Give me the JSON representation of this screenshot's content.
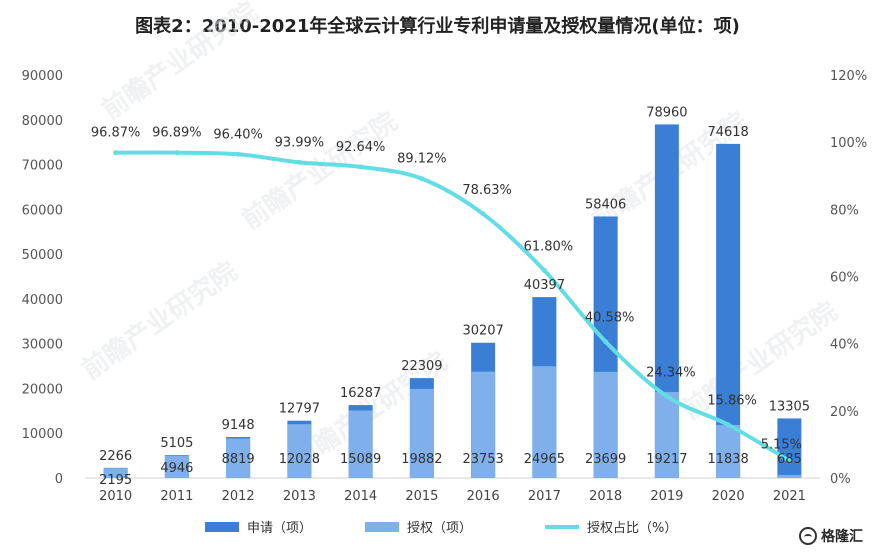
{
  "chart_data": {
    "type": "bar+line",
    "title": "图表2：2010-2021年全球云计算行业专利申请量及授权量情况(单位：项)",
    "categories": [
      "2010",
      "2011",
      "2012",
      "2013",
      "2014",
      "2015",
      "2016",
      "2017",
      "2018",
      "2019",
      "2020",
      "2021"
    ],
    "series": [
      {
        "name": "申请（项）",
        "axis": "left",
        "type": "bar",
        "color": "#3a7fd5",
        "values": [
          2266,
          5105,
          9148,
          12797,
          16287,
          22309,
          30207,
          40397,
          58406,
          78960,
          74618,
          13305
        ]
      },
      {
        "name": "授权（项）",
        "axis": "left",
        "type": "bar",
        "color": "#7fb0ec",
        "values": [
          2195,
          4946,
          8819,
          12028,
          15089,
          19882,
          23753,
          24965,
          23699,
          19217,
          11838,
          685
        ]
      },
      {
        "name": "授权占比（%）",
        "axis": "right",
        "type": "line",
        "color": "#62dde4",
        "values": [
          96.87,
          96.89,
          96.4,
          93.99,
          92.64,
          89.12,
          78.63,
          61.8,
          40.58,
          24.34,
          15.86,
          5.15
        ],
        "labels": [
          "96.87%",
          "96.89%",
          "96.40%",
          "93.99%",
          "92.64%",
          "89.12%",
          "78.63%",
          "61.80%",
          "40.58%",
          "24.34%",
          "15.86%",
          "5.15%"
        ]
      }
    ],
    "y_left": {
      "min": 0,
      "max": 90000,
      "step": 10000,
      "ticks": [
        "0",
        "10000",
        "20000",
        "30000",
        "40000",
        "50000",
        "60000",
        "70000",
        "80000",
        "90000"
      ]
    },
    "y_right": {
      "min": 0,
      "max": 120,
      "step": 20,
      "ticks": [
        "0%",
        "20%",
        "40%",
        "60%",
        "80%",
        "100%",
        "120%"
      ]
    },
    "grid": false,
    "legend_position": "bottom"
  },
  "watermark": "前瞻产业研究院",
  "brand": "格隆汇"
}
